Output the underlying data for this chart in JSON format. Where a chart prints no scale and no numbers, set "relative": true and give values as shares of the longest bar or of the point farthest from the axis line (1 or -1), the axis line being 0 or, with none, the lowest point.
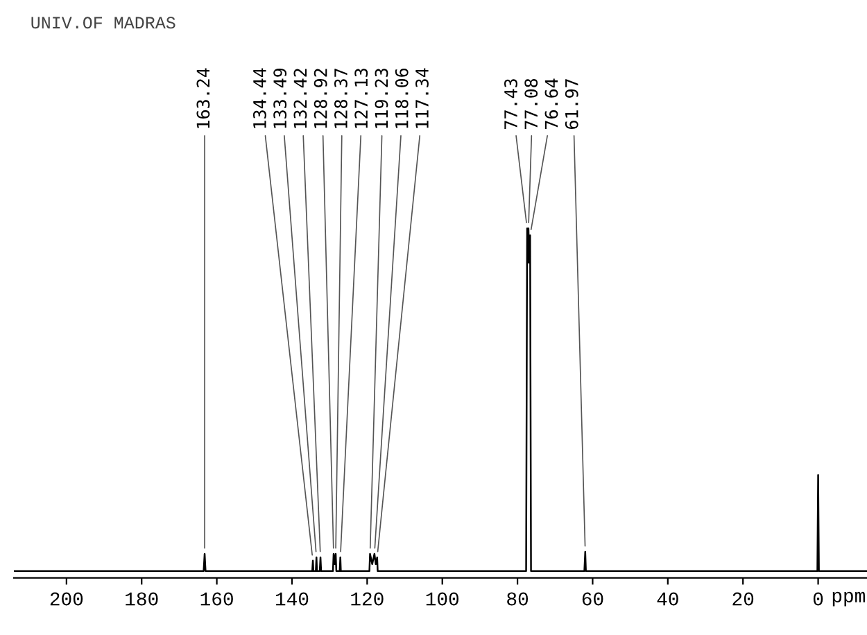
{
  "chart_data": {
    "type": "line",
    "title": "UNIV.OF MADRAS",
    "xlabel": "ppm",
    "relative": true,
    "xlim": [
      214,
      -13
    ],
    "xticks": [
      200,
      180,
      160,
      140,
      120,
      100,
      80,
      60,
      40,
      20,
      0
    ],
    "grid": false,
    "marker": "none",
    "line_style": "solid",
    "series": [
      {
        "color": "#000000",
        "x": [
          214,
          163.5,
          163.24,
          163.0,
          134.6,
          134.44,
          134.3,
          133.65,
          133.49,
          133.35,
          132.6,
          132.42,
          132.25,
          129.1,
          128.92,
          128.65,
          128.37,
          128.2,
          127.3,
          127.13,
          127.0,
          119.4,
          119.23,
          118.65,
          118.06,
          117.7,
          117.34,
          117.2,
          77.7,
          77.43,
          77.25,
          77.08,
          76.85,
          76.64,
          76.4,
          62.2,
          61.97,
          61.8,
          0.2,
          0.0,
          -0.2,
          -13
        ],
        "values": [
          0,
          0,
          0.05,
          0,
          0,
          0.03,
          0,
          0,
          0.04,
          0,
          0,
          0.04,
          0,
          0,
          0.05,
          0.02,
          0.05,
          0,
          0,
          0.04,
          0,
          0,
          0.05,
          0.02,
          0.05,
          0.02,
          0.04,
          0,
          0,
          1.0,
          0.9,
          1.0,
          0.9,
          0.98,
          0,
          0,
          0.056,
          0,
          0,
          0.28,
          0,
          0
        ]
      }
    ],
    "annotations": [
      {
        "text": "163.24",
        "x": 163.24,
        "y": 0.05
      },
      {
        "text": "134.44",
        "x": 134.44,
        "y": 0.03
      },
      {
        "text": "133.49",
        "x": 133.49,
        "y": 0.04
      },
      {
        "text": "132.42",
        "x": 132.42,
        "y": 0.04
      },
      {
        "text": "128.92",
        "x": 128.92,
        "y": 0.05
      },
      {
        "text": "128.37",
        "x": 128.37,
        "y": 0.05
      },
      {
        "text": "127.13",
        "x": 127.13,
        "y": 0.04
      },
      {
        "text": "119.23",
        "x": 119.23,
        "y": 0.05
      },
      {
        "text": "118.06",
        "x": 118.06,
        "y": 0.05
      },
      {
        "text": "117.34",
        "x": 117.34,
        "y": 0.04
      },
      {
        "text": "77.43",
        "x": 77.43,
        "y": 1.0
      },
      {
        "text": "77.08",
        "x": 77.08,
        "y": 1.0
      },
      {
        "text": "76.64",
        "x": 76.64,
        "y": 0.98
      },
      {
        "text": "61.97",
        "x": 61.97,
        "y": 0.056
      }
    ]
  }
}
